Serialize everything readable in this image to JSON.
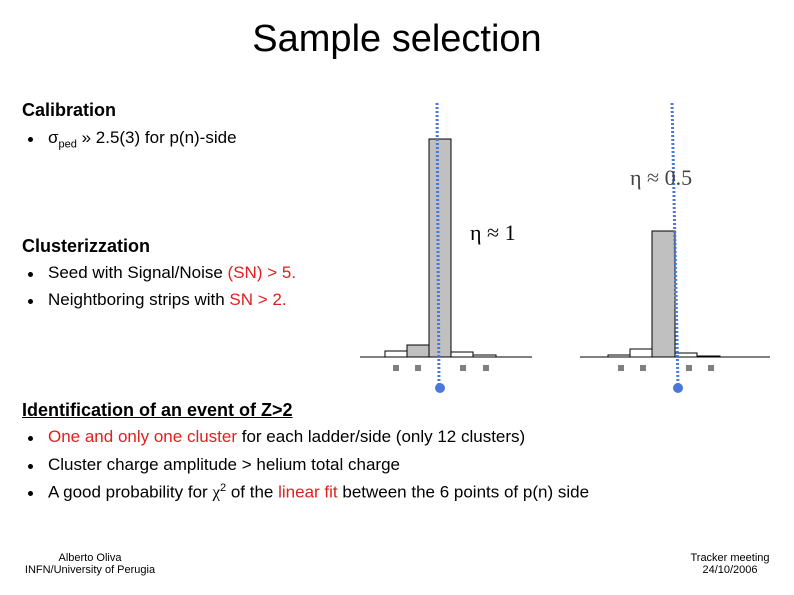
{
  "title": "Sample selection",
  "calibration": {
    "heading": "Calibration",
    "bullets": [
      [
        "σ",
        "ped",
        " » 2.5(3) for p(n)-side"
      ]
    ]
  },
  "clusterization": {
    "heading": "Clusterizzation",
    "bullets": [
      [
        "Seed with Signal/Noise ",
        "(SN) > 5."
      ],
      [
        "Neightboring strips with ",
        "SN > 2."
      ]
    ]
  },
  "identification": {
    "heading": "Identification of an event of Z>2",
    "bullets": [
      [
        "One and only one cluster",
        " for each ladder/side (only 12 clusters)"
      ],
      [
        "Cluster charge amplitude > helium total charge"
      ],
      [
        "A good probability for ",
        "χ",
        "2",
        " of the ",
        "linear fit",
        " between the 6 points of p(n) side"
      ]
    ]
  },
  "plots": [
    {
      "label": "η ≈ 1"
    },
    {
      "label": "η ≈ 0.5"
    }
  ],
  "footer": {
    "author": [
      "Alberto Oliva",
      "INFN/University of Perugia"
    ],
    "event": [
      "Tracker meeting",
      "24/10/2006"
    ]
  }
}
